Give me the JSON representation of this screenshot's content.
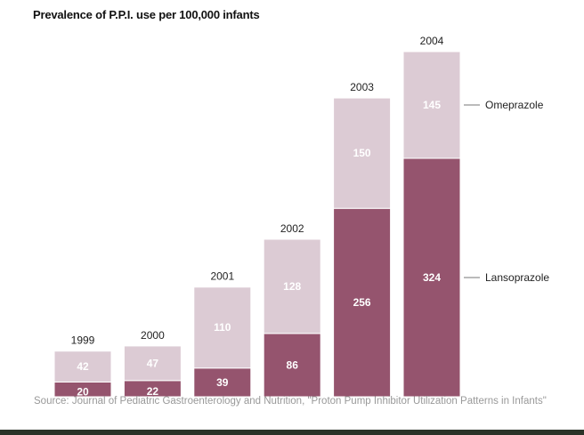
{
  "chart_data": {
    "type": "bar",
    "stacked": true,
    "title": "Prevalence of P.P.I. use per 100,000 infants",
    "categories": [
      "1999",
      "2000",
      "2001",
      "2002",
      "2003",
      "2004"
    ],
    "series": [
      {
        "name": "Lansoprazole",
        "values": [
          20,
          22,
          39,
          86,
          256,
          324
        ],
        "color": "#95546e"
      },
      {
        "name": "Omeprazole",
        "values": [
          42,
          47,
          110,
          128,
          150,
          145
        ],
        "color": "#dccbd4"
      }
    ],
    "ylim": [
      0,
      469
    ],
    "grid": false,
    "legend": "right, labels beside last bar",
    "source": "Source: Journal of Pediatric Gastroenterology and Nutrition, \"Proton Pump Inhibitor Utilization Patterns in Infants\""
  }
}
